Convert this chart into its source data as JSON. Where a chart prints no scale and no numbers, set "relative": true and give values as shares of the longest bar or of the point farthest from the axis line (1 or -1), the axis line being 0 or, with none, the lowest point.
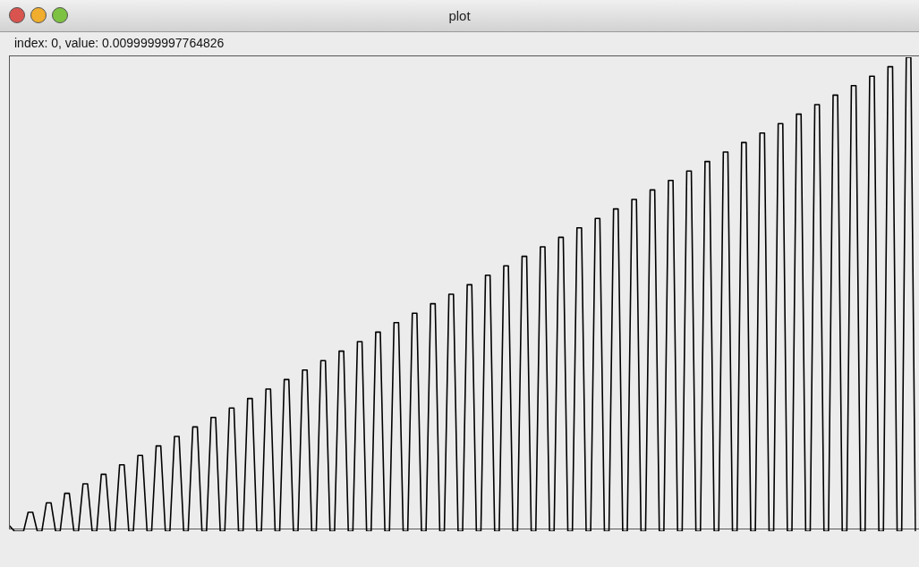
{
  "chart_data": {
    "type": "line",
    "title": "plot",
    "annotations": [
      "index: 0, value: 0.0099999997764826"
    ],
    "relative": true,
    "tick_labels": false,
    "legend": false,
    "marker": "none",
    "line_style": "solid",
    "categories": [
      null,
      null,
      null,
      null,
      null,
      null,
      null,
      null,
      null,
      null,
      null,
      null,
      null,
      null,
      null,
      null,
      null,
      null,
      null,
      null,
      null,
      null,
      null,
      null,
      null,
      null,
      null,
      null,
      null,
      null,
      null,
      null,
      null,
      null,
      null,
      null,
      null,
      null,
      null,
      null,
      null,
      null,
      null,
      null,
      null,
      null,
      null,
      null,
      null,
      null,
      null,
      null,
      null,
      null,
      null,
      null,
      null,
      null,
      null,
      null,
      null,
      null,
      null,
      null,
      null,
      null,
      null,
      null,
      null,
      null,
      null,
      null,
      null,
      null,
      null,
      null,
      null,
      null,
      null,
      null,
      null,
      null,
      null,
      null,
      null,
      null,
      null,
      null,
      null,
      null,
      null,
      null,
      null,
      null,
      null,
      null,
      null,
      null,
      null,
      null,
      null,
      null,
      null,
      null,
      null,
      null,
      null,
      null,
      null,
      null,
      null,
      null,
      null,
      null,
      null,
      null,
      null,
      null,
      null,
      null,
      null,
      null,
      null,
      null,
      null,
      null,
      null,
      null,
      null,
      null,
      null,
      null,
      null,
      null,
      null,
      null,
      null,
      null,
      null,
      null,
      null,
      null,
      null,
      null,
      null,
      null,
      null,
      null,
      null,
      null,
      null,
      null,
      null,
      null,
      null,
      null,
      null,
      null,
      null,
      null,
      null,
      null,
      null,
      null,
      null,
      null,
      null,
      null,
      null,
      null,
      null,
      null,
      null,
      null,
      null,
      null,
      null,
      null,
      null,
      null,
      null,
      null,
      null,
      null,
      null,
      null,
      null,
      null,
      null,
      null,
      null,
      null,
      null,
      null,
      null,
      null,
      null,
      null,
      null
    ],
    "series": [
      {
        "color": "#000000",
        "values": [
          0.011,
          0,
          0,
          0,
          0.04,
          0.04,
          0,
          0,
          0.06,
          0.06,
          0,
          0,
          0.08,
          0.08,
          0,
          0,
          0.1,
          0.1,
          0,
          0,
          0.12,
          0.12,
          0,
          0,
          0.14,
          0.14,
          0,
          0,
          0.16,
          0.16,
          0,
          0,
          0.18,
          0.18,
          0,
          0,
          0.2,
          0.2,
          0,
          0,
          0.22,
          0.22,
          0,
          0,
          0.24,
          0.24,
          0,
          0,
          0.26,
          0.26,
          0,
          0,
          0.28,
          0.28,
          0,
          0,
          0.3,
          0.3,
          0,
          0,
          0.32,
          0.32,
          0,
          0,
          0.34,
          0.34,
          0,
          0,
          0.36,
          0.36,
          0,
          0,
          0.38,
          0.38,
          0,
          0,
          0.4,
          0.4,
          0,
          0,
          0.42,
          0.42,
          0,
          0,
          0.44,
          0.44,
          0,
          0,
          0.46,
          0.46,
          0,
          0,
          0.48,
          0.48,
          0,
          0,
          0.5,
          0.5,
          0,
          0,
          0.52,
          0.52,
          0,
          0,
          0.54,
          0.54,
          0,
          0,
          0.56,
          0.56,
          0,
          0,
          0.58,
          0.58,
          0,
          0,
          0.6,
          0.6,
          0,
          0,
          0.62,
          0.62,
          0,
          0,
          0.64,
          0.64,
          0,
          0,
          0.66,
          0.66,
          0,
          0,
          0.68,
          0.68,
          0,
          0,
          0.7,
          0.7,
          0,
          0,
          0.72,
          0.72,
          0,
          0,
          0.74,
          0.74,
          0,
          0,
          0.76,
          0.76,
          0,
          0,
          0.78,
          0.78,
          0,
          0,
          0.8,
          0.8,
          0,
          0,
          0.82,
          0.82,
          0,
          0,
          0.84,
          0.84,
          0,
          0,
          0.86,
          0.86,
          0,
          0,
          0.88,
          0.88,
          0,
          0,
          0.9,
          0.9,
          0,
          0,
          0.92,
          0.92,
          0,
          0,
          0.94,
          0.94,
          0,
          0,
          0.96,
          0.96,
          0,
          0,
          0.98,
          0.98,
          0,
          0,
          1,
          1,
          0
        ]
      }
    ]
  }
}
